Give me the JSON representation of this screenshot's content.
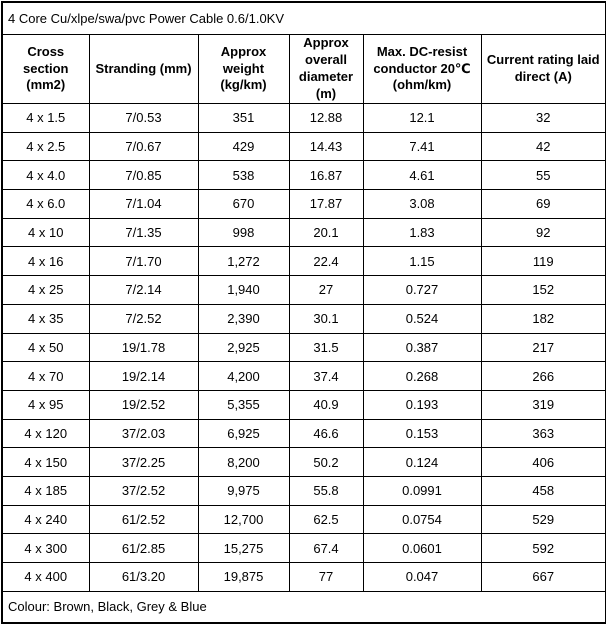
{
  "table": {
    "title": "4 Core Cu/xlpe/swa/pvc Power Cable 0.6/1.0KV",
    "columns": [
      "Cross section (mm2)",
      "Stranding (mm)",
      "Approx weight (kg/km)",
      "Approx overall diameter (m)",
      "Max. DC-resist conductor 20℃ (ohm/km)",
      "Current rating laid direct (A)"
    ],
    "rows": [
      [
        "4 x 1.5",
        "7/0.53",
        "351",
        "12.88",
        "12.1",
        "32"
      ],
      [
        "4 x 2.5",
        "7/0.67",
        "429",
        "14.43",
        "7.41",
        "42"
      ],
      [
        "4 x 4.0",
        "7/0.85",
        "538",
        "16.87",
        "4.61",
        "55"
      ],
      [
        "4 x 6.0",
        "7/1.04",
        "670",
        "17.87",
        "3.08",
        "69"
      ],
      [
        "4 x 10",
        "7/1.35",
        "998",
        "20.1",
        "1.83",
        "92"
      ],
      [
        "4 x 16",
        "7/1.70",
        "1,272",
        "22.4",
        "1.15",
        "119"
      ],
      [
        "4 x 25",
        "7/2.14",
        "1,940",
        "27",
        "0.727",
        "152"
      ],
      [
        "4 x 35",
        "7/2.52",
        "2,390",
        "30.1",
        "0.524",
        "182"
      ],
      [
        "4 x 50",
        "19/1.78",
        "2,925",
        "31.5",
        "0.387",
        "217"
      ],
      [
        "4 x 70",
        "19/2.14",
        "4,200",
        "37.4",
        "0.268",
        "266"
      ],
      [
        "4 x 95",
        "19/2.52",
        "5,355",
        "40.9",
        "0.193",
        "319"
      ],
      [
        "4 x 120",
        "37/2.03",
        "6,925",
        "46.6",
        "0.153",
        "363"
      ],
      [
        "4 x 150",
        "37/2.25",
        "8,200",
        "50.2",
        "0.124",
        "406"
      ],
      [
        "4 x 185",
        "37/2.52",
        "9,975",
        "55.8",
        "0.0991",
        "458"
      ],
      [
        "4 x 240",
        "61/2.52",
        "12,700",
        "62.5",
        "0.0754",
        "529"
      ],
      [
        "4 x 300",
        "61/2.85",
        "15,275",
        "67.4",
        "0.0601",
        "592"
      ],
      [
        "4 x 400",
        "61/3.20",
        "19,875",
        "77",
        "0.047",
        "667"
      ]
    ],
    "footer": "Colour: Brown, Black, Grey & Blue"
  },
  "colors": {
    "border": "#000000",
    "text": "#000000",
    "background": "#ffffff"
  }
}
